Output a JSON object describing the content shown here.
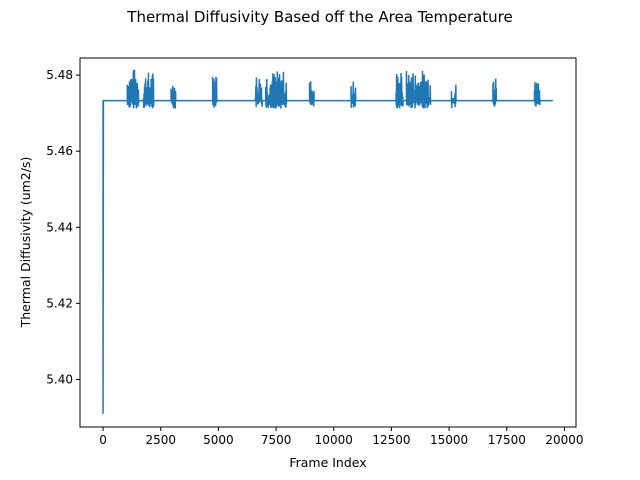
{
  "chart_data": {
    "type": "line",
    "title": "Thermal Diffusivity Based off the Area Temperature",
    "xlabel": "Frame Index",
    "ylabel": "Thermal Diffusivity (um2/s)",
    "xlim": [
      -1000,
      20500
    ],
    "ylim": [
      5.3875,
      5.4845
    ],
    "x_ticks": [
      0,
      2500,
      5000,
      7500,
      10000,
      12500,
      15000,
      17500,
      20000
    ],
    "x_tick_labels": [
      "0",
      "2500",
      "5000",
      "7500",
      "10000",
      "12500",
      "15000",
      "17500",
      "20000"
    ],
    "y_ticks": [
      5.4,
      5.42,
      5.44,
      5.46,
      5.48
    ],
    "y_tick_labels": [
      "5.40",
      "5.42",
      "5.44",
      "5.46",
      "5.48"
    ],
    "grid": false,
    "legend": "none",
    "series": [
      {
        "color": "#1f77b4",
        "baseline": 5.4733,
        "initial_drop": {
          "x": 0,
          "y_min": 5.391
        },
        "x_end": 19500,
        "noise_bursts": [
          {
            "x_start": 1050,
            "x_end": 1550,
            "y_min": 5.4712,
            "y_max": 5.4818
          },
          {
            "x_start": 1750,
            "x_end": 2200,
            "y_min": 5.4712,
            "y_max": 5.481
          },
          {
            "x_start": 2950,
            "x_end": 3150,
            "y_min": 5.4712,
            "y_max": 5.479
          },
          {
            "x_start": 4750,
            "x_end": 4950,
            "y_min": 5.4712,
            "y_max": 5.4805
          },
          {
            "x_start": 6600,
            "x_end": 6900,
            "y_min": 5.4712,
            "y_max": 5.4805
          },
          {
            "x_start": 7050,
            "x_end": 7950,
            "y_min": 5.4712,
            "y_max": 5.4812
          },
          {
            "x_start": 8950,
            "x_end": 9150,
            "y_min": 5.4712,
            "y_max": 5.479
          },
          {
            "x_start": 10750,
            "x_end": 10950,
            "y_min": 5.4712,
            "y_max": 5.4802
          },
          {
            "x_start": 12700,
            "x_end": 13000,
            "y_min": 5.4712,
            "y_max": 5.4812
          },
          {
            "x_start": 13150,
            "x_end": 14200,
            "y_min": 5.4712,
            "y_max": 5.4814
          },
          {
            "x_start": 15100,
            "x_end": 15300,
            "y_min": 5.4712,
            "y_max": 5.478
          },
          {
            "x_start": 16900,
            "x_end": 17050,
            "y_min": 5.4712,
            "y_max": 5.48
          },
          {
            "x_start": 18700,
            "x_end": 18950,
            "y_min": 5.4712,
            "y_max": 5.4795
          }
        ]
      }
    ]
  }
}
